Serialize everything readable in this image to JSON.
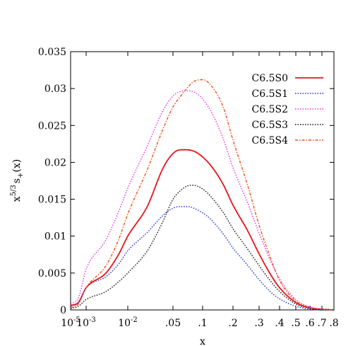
{
  "chart_data": {
    "type": "line",
    "title": "",
    "xlabel": "x",
    "ylabel": {
      "prefix": "x",
      "exponent": "5/3",
      "core": "s",
      "subscript": "+",
      "suffix": "(x)"
    },
    "x_scale": "custom-log-like",
    "xlim": [
      1e-05,
      0.8
    ],
    "ylim": [
      0,
      0.035
    ],
    "x_ticks": [
      {
        "value": 1e-05,
        "base": "10",
        "exp": "-5"
      },
      {
        "value": 0.001,
        "base": "10",
        "exp": "-3"
      },
      {
        "value": 0.01,
        "base": "10",
        "exp": "-2"
      },
      {
        "value": 0.05,
        "label": ".05"
      },
      {
        "value": 0.1,
        "label": ".1"
      },
      {
        "value": 0.2,
        "label": ".2"
      },
      {
        "value": 0.3,
        "label": ".3"
      },
      {
        "value": 0.4,
        "label": ".4"
      },
      {
        "value": 0.5,
        "label": ".5"
      },
      {
        "value": 0.6,
        "label": ".6"
      },
      {
        "value": 0.7,
        "label": ".7"
      },
      {
        "value": 0.8,
        "label": ".8"
      }
    ],
    "y_ticks": [
      {
        "value": 0,
        "label": "0"
      },
      {
        "value": 0.005,
        "label": "0.005"
      },
      {
        "value": 0.01,
        "label": "0.01"
      },
      {
        "value": 0.015,
        "label": "0.015"
      },
      {
        "value": 0.02,
        "label": "0.02"
      },
      {
        "value": 0.025,
        "label": "0.025"
      },
      {
        "value": 0.03,
        "label": "0.03"
      },
      {
        "value": 0.035,
        "label": "0.035"
      }
    ],
    "grid": false,
    "legend_position": "top-right",
    "series": [
      {
        "name": "C6.5S0",
        "color": "#e8141b",
        "dash": "solid",
        "x": [
          1e-05,
          0.0001,
          0.001,
          0.003,
          0.006,
          0.01,
          0.02,
          0.035,
          0.05,
          0.06,
          0.07,
          0.09,
          0.12,
          0.16,
          0.2,
          0.25,
          0.3,
          0.35,
          0.4,
          0.5,
          0.6,
          0.7,
          0.8
        ],
        "y": [
          0.0006,
          0.001,
          0.003,
          0.005,
          0.0075,
          0.01,
          0.014,
          0.0192,
          0.0212,
          0.0217,
          0.0217,
          0.0212,
          0.0196,
          0.017,
          0.0142,
          0.0108,
          0.0076,
          0.0049,
          0.003,
          0.001,
          0.0003,
          0.0001,
          0.0
        ]
      },
      {
        "name": "C6.5S1",
        "color": "#1f2fcf",
        "dash": "dotted",
        "x": [
          1e-05,
          0.0001,
          0.001,
          0.003,
          0.006,
          0.01,
          0.02,
          0.035,
          0.05,
          0.06,
          0.07,
          0.09,
          0.12,
          0.16,
          0.2,
          0.25,
          0.3,
          0.35,
          0.4,
          0.5,
          0.6,
          0.7,
          0.8
        ],
        "y": [
          0.0005,
          0.001,
          0.003,
          0.0045,
          0.0062,
          0.008,
          0.0105,
          0.0128,
          0.0138,
          0.014,
          0.014,
          0.0135,
          0.0123,
          0.0103,
          0.0084,
          0.0061,
          0.0041,
          0.0025,
          0.0015,
          0.0005,
          0.0001,
          0.0,
          0.0
        ]
      },
      {
        "name": "C6.5S2",
        "color": "#e632e6",
        "dash": "dotted",
        "x": [
          1e-05,
          0.0001,
          0.001,
          0.003,
          0.006,
          0.01,
          0.02,
          0.035,
          0.05,
          0.06,
          0.07,
          0.09,
          0.12,
          0.16,
          0.2,
          0.25,
          0.3,
          0.35,
          0.4,
          0.5,
          0.6,
          0.7,
          0.8
        ],
        "y": [
          0.0008,
          0.0016,
          0.0055,
          0.0095,
          0.0133,
          0.0165,
          0.0222,
          0.027,
          0.029,
          0.0296,
          0.0297,
          0.0292,
          0.027,
          0.0232,
          0.0193,
          0.0146,
          0.0104,
          0.0068,
          0.0042,
          0.0014,
          0.0004,
          0.0001,
          0.0
        ]
      },
      {
        "name": "C6.5S3",
        "color": "#111111",
        "dash": "dotted",
        "x": [
          1e-05,
          0.0001,
          0.001,
          0.003,
          0.006,
          0.01,
          0.02,
          0.035,
          0.05,
          0.06,
          0.07,
          0.08,
          0.1,
          0.12,
          0.16,
          0.2,
          0.25,
          0.3,
          0.35,
          0.4,
          0.5,
          0.6,
          0.7,
          0.8
        ],
        "y": [
          0.0002,
          0.0005,
          0.0014,
          0.0025,
          0.0038,
          0.005,
          0.008,
          0.012,
          0.015,
          0.0162,
          0.0168,
          0.0169,
          0.0164,
          0.0154,
          0.0132,
          0.011,
          0.0083,
          0.006,
          0.004,
          0.0025,
          0.0008,
          0.0002,
          0.0,
          0.0
        ]
      },
      {
        "name": "C6.5S4",
        "color": "#f0501a",
        "dash": "dashdot",
        "x": [
          1e-05,
          0.0001,
          0.001,
          0.003,
          0.006,
          0.01,
          0.02,
          0.035,
          0.05,
          0.06,
          0.07,
          0.08,
          0.1,
          0.12,
          0.16,
          0.2,
          0.25,
          0.3,
          0.35,
          0.4,
          0.5,
          0.6,
          0.7,
          0.8
        ],
        "y": [
          0.0003,
          0.0008,
          0.003,
          0.006,
          0.0095,
          0.013,
          0.019,
          0.0245,
          0.0275,
          0.029,
          0.0301,
          0.0309,
          0.0312,
          0.0305,
          0.0275,
          0.023,
          0.017,
          0.0115,
          0.0072,
          0.004,
          0.0012,
          0.0003,
          0.0001,
          0.0
        ]
      }
    ]
  }
}
